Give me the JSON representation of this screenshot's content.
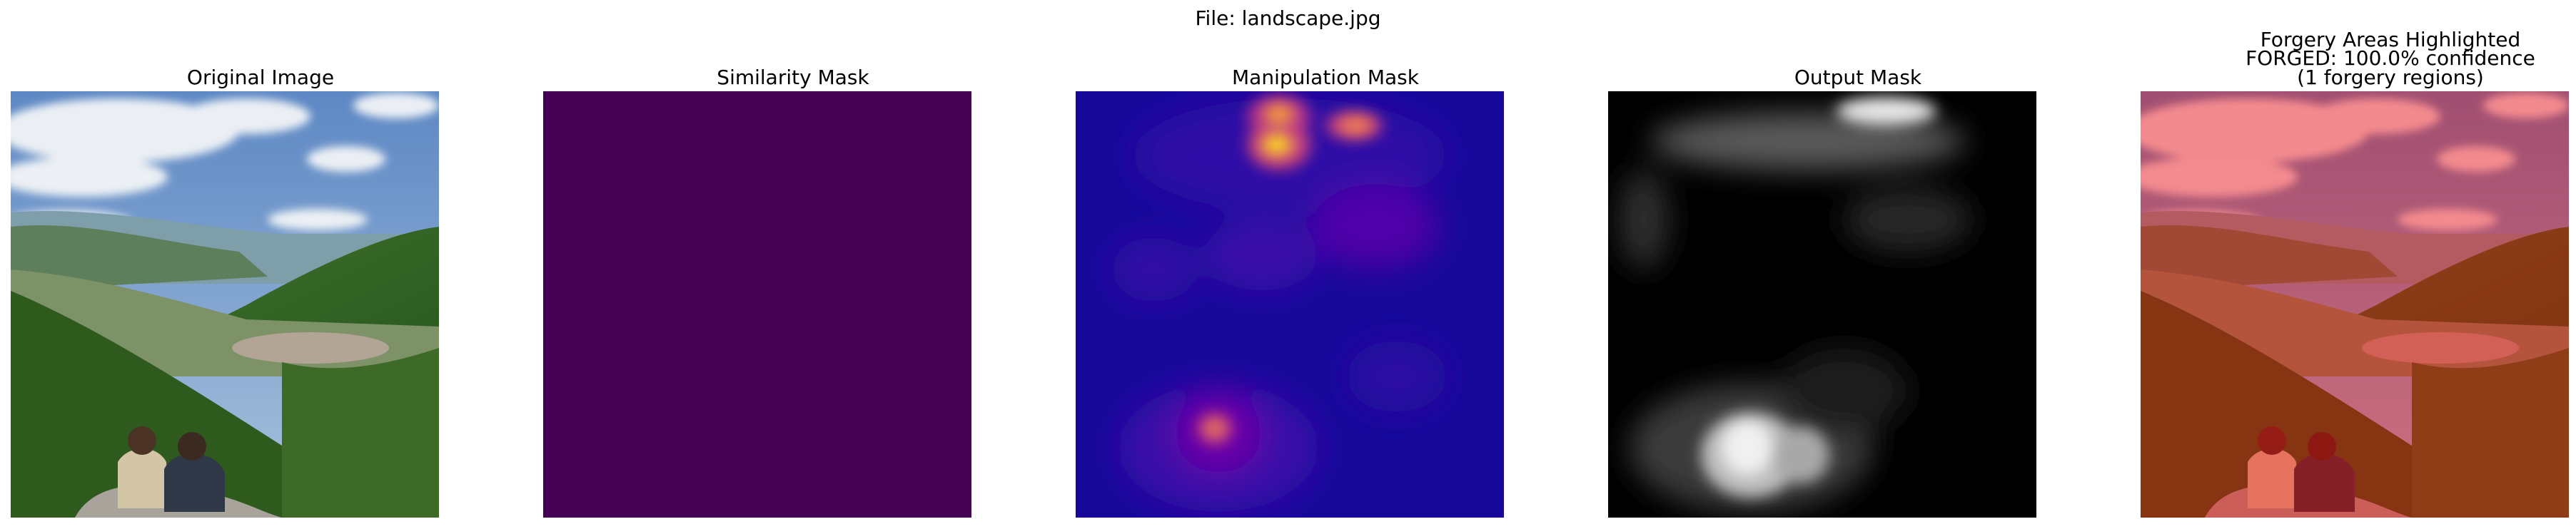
{
  "suptitle": "File: landscape.jpg",
  "panels": [
    {
      "title": "Original Image"
    },
    {
      "title": "Similarity Mask",
      "fill_color": "#440154"
    },
    {
      "title": "Manipulation Mask",
      "colormap": "plasma"
    },
    {
      "title": "Output Mask",
      "colormap": "gray"
    },
    {
      "title_lines": [
        "Forgery Areas Highlighted",
        "FORGED: 100.0% confidence",
        "(1 forgery regions)"
      ],
      "overlay_color": "#ff0000"
    }
  ]
}
